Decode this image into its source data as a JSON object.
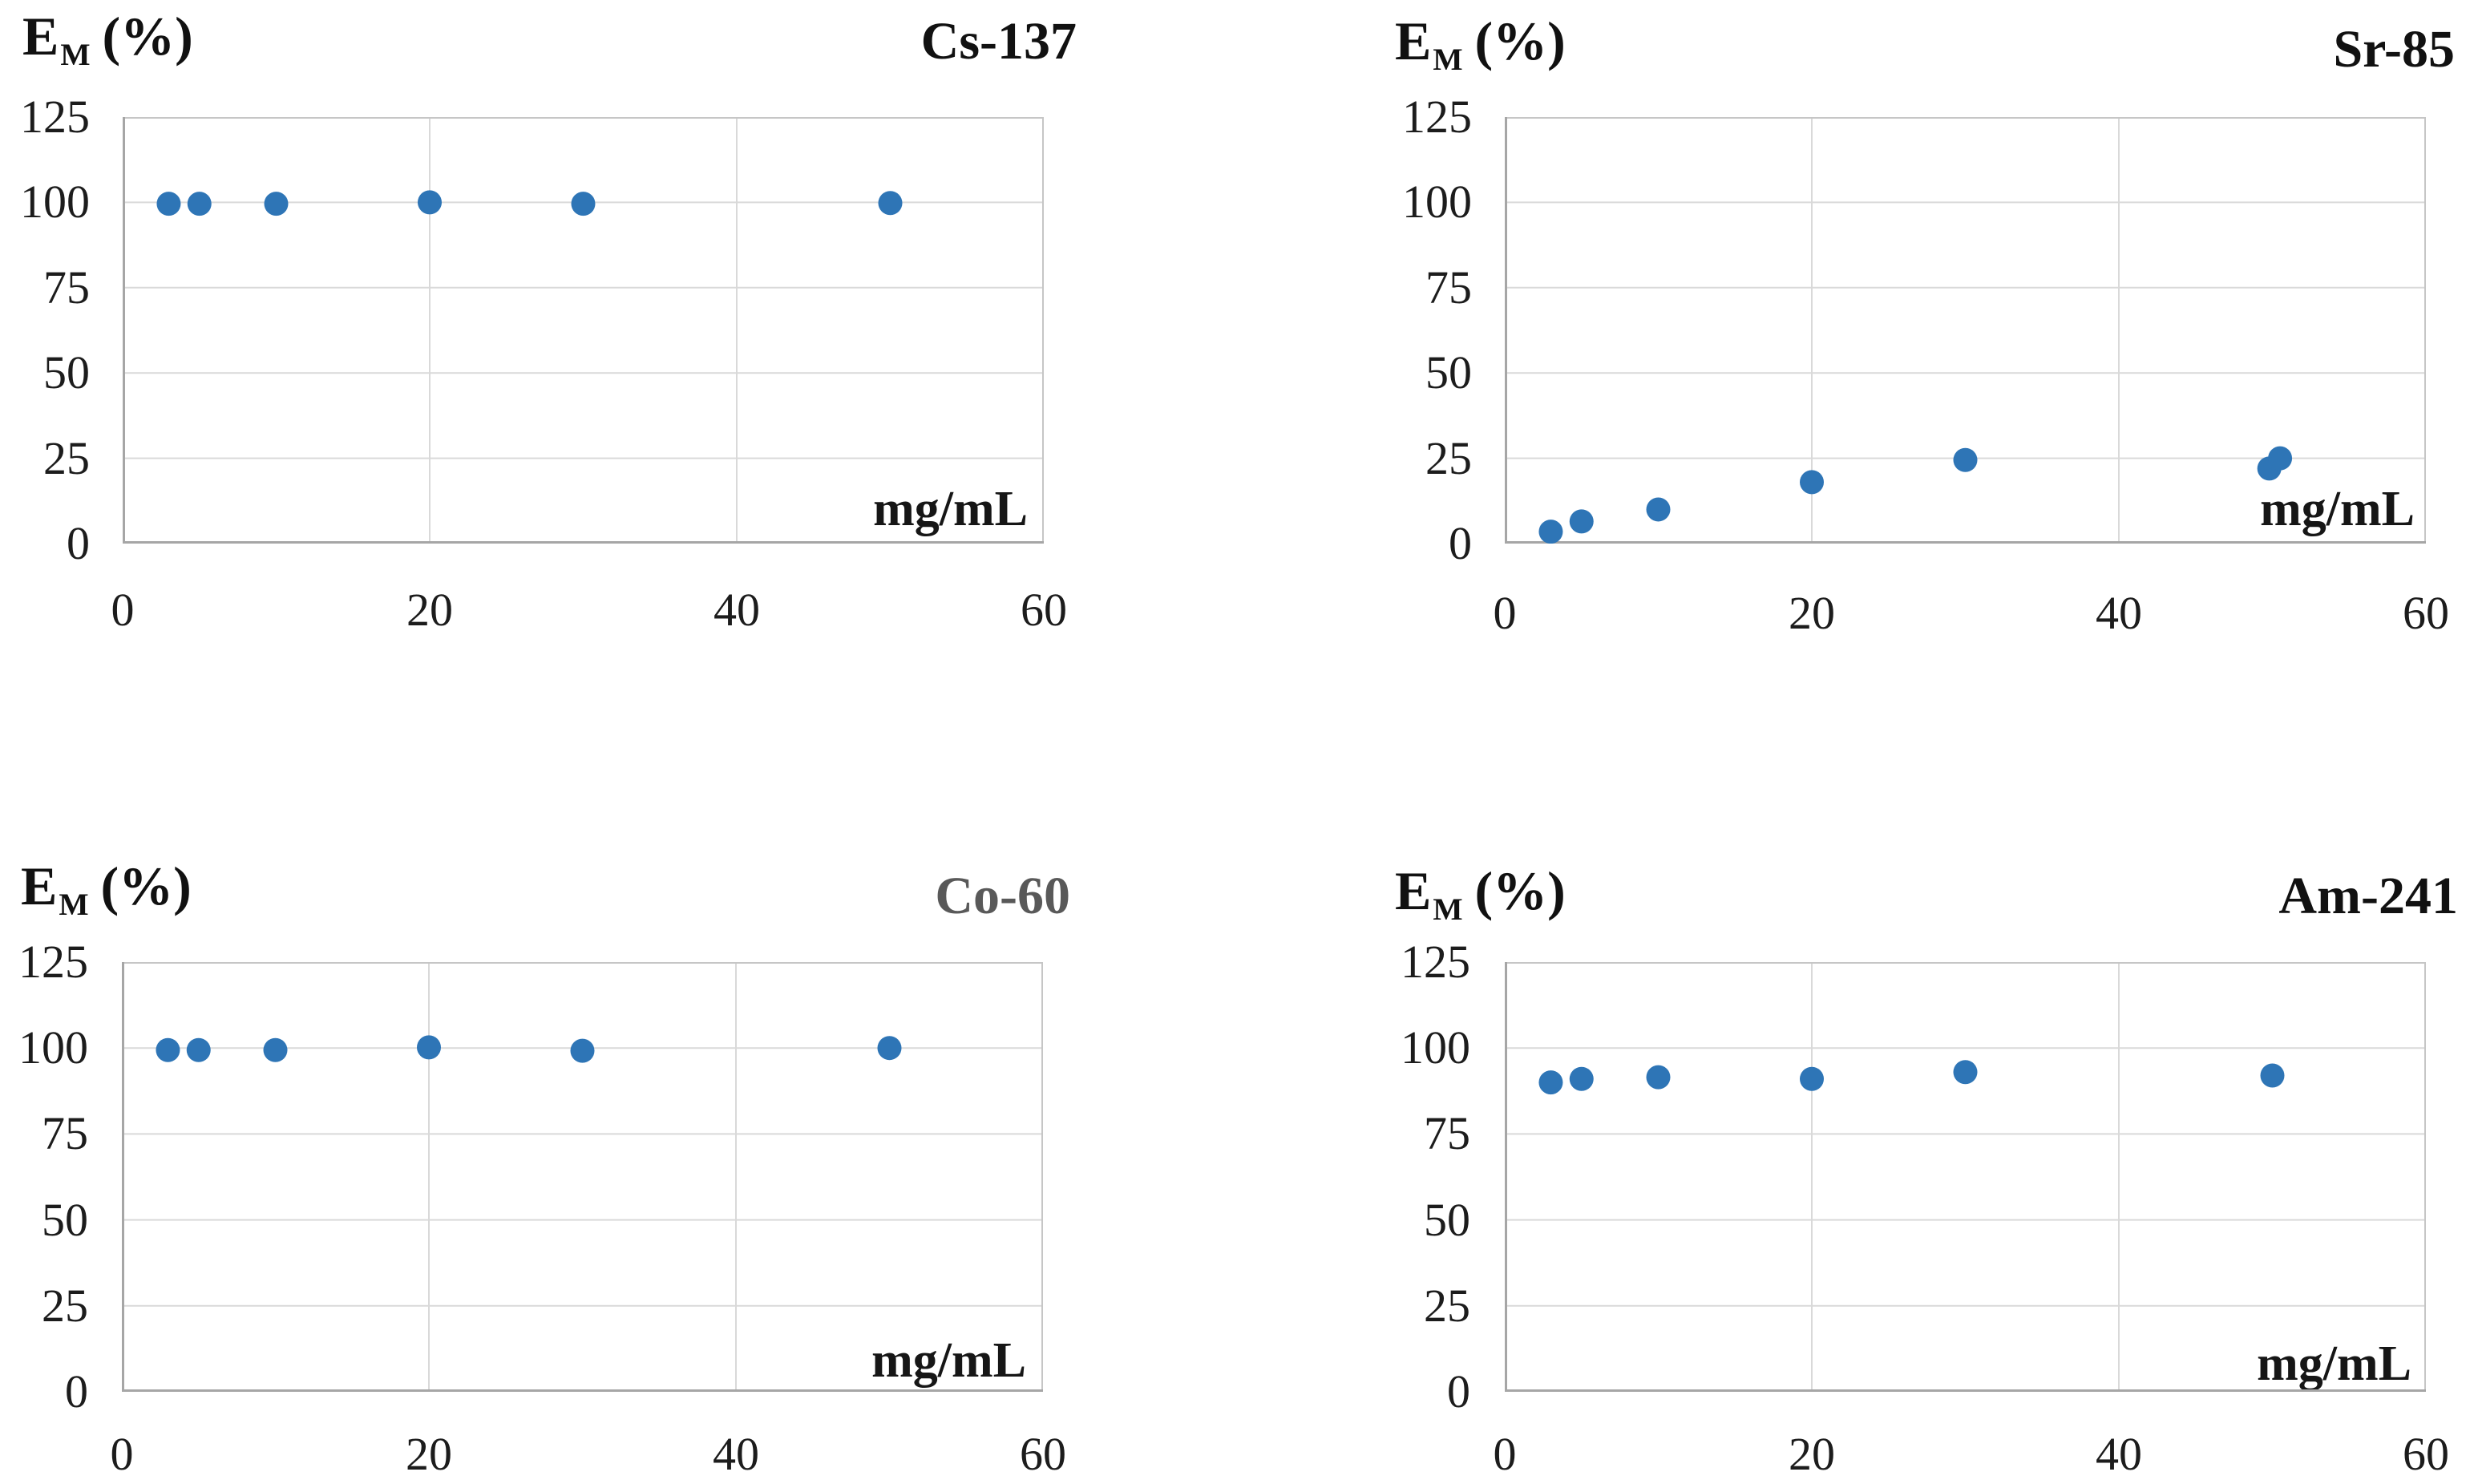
{
  "page": {
    "background_color": "#ffffff"
  },
  "chart_data": [
    {
      "id": "cs137",
      "type": "scatter",
      "title": "Cs-137",
      "title_color": "#111111",
      "y_axis_label": {
        "main": "E",
        "sub": "M",
        "rest": "(%)"
      },
      "x_unit_label": "mg/mL",
      "xlabel": "mg/mL",
      "ylabel": "EM (%)",
      "xlim": [
        0,
        60
      ],
      "ylim": [
        0,
        125
      ],
      "x_ticks": [
        0,
        20,
        40,
        60
      ],
      "y_ticks": [
        0,
        25,
        50,
        75,
        100,
        125
      ],
      "grid": true,
      "legend": "none",
      "marker_color": "#2E75B6",
      "points": [
        {
          "x": 3,
          "y": 99.6
        },
        {
          "x": 5,
          "y": 99.6
        },
        {
          "x": 10,
          "y": 99.6
        },
        {
          "x": 20,
          "y": 100
        },
        {
          "x": 30,
          "y": 99.6
        },
        {
          "x": 50,
          "y": 99.8
        }
      ]
    },
    {
      "id": "sr85",
      "type": "scatter",
      "title": "Sr-85",
      "title_color": "#111111",
      "y_axis_label": {
        "main": "E",
        "sub": "M",
        "rest": "(%)"
      },
      "x_unit_label": "mg/mL",
      "xlabel": "mg/mL",
      "ylabel": "EM (%)",
      "xlim": [
        0,
        60
      ],
      "ylim": [
        0,
        125
      ],
      "x_ticks": [
        0,
        20,
        40,
        60
      ],
      "y_ticks": [
        0,
        25,
        50,
        75,
        100,
        125
      ],
      "grid": true,
      "legend": "none",
      "marker_color": "#2E75B6",
      "points": [
        {
          "x": 3,
          "y": 3.5
        },
        {
          "x": 5,
          "y": 6.5
        },
        {
          "x": 10,
          "y": 10
        },
        {
          "x": 20,
          "y": 18
        },
        {
          "x": 30,
          "y": 24.5
        },
        {
          "x": 49.8,
          "y": 22
        },
        {
          "x": 50.5,
          "y": 25
        }
      ]
    },
    {
      "id": "co60",
      "type": "scatter",
      "title": "Co-60",
      "title_color": "#595959",
      "y_axis_label": {
        "main": "E",
        "sub": "M",
        "rest": "(%)"
      },
      "x_unit_label": "mg/mL",
      "xlabel": "mg/mL",
      "ylabel": "EM (%)",
      "xlim": [
        0,
        60
      ],
      "ylim": [
        0,
        125
      ],
      "x_ticks": [
        0,
        20,
        40,
        60
      ],
      "y_ticks": [
        0,
        25,
        50,
        75,
        100,
        125
      ],
      "grid": true,
      "legend": "none",
      "marker_color": "#2E75B6",
      "points": [
        {
          "x": 3,
          "y": 99.4
        },
        {
          "x": 5,
          "y": 99.4
        },
        {
          "x": 10,
          "y": 99.4
        },
        {
          "x": 20,
          "y": 100.2
        },
        {
          "x": 30,
          "y": 99.2
        },
        {
          "x": 50,
          "y": 100
        }
      ]
    },
    {
      "id": "am241",
      "type": "scatter",
      "title": "Am-241",
      "title_color": "#111111",
      "y_axis_label": {
        "main": "E",
        "sub": "M",
        "rest": "(%)"
      },
      "x_unit_label": "mg/mL",
      "xlabel": "mg/mL",
      "ylabel": "EM (%)",
      "xlim": [
        0,
        60
      ],
      "ylim": [
        0,
        125
      ],
      "x_ticks": [
        0,
        20,
        40,
        60
      ],
      "y_ticks": [
        0,
        25,
        50,
        75,
        100,
        125
      ],
      "grid": true,
      "legend": "none",
      "marker_color": "#2E75B6",
      "points": [
        {
          "x": 3,
          "y": 90
        },
        {
          "x": 5,
          "y": 91
        },
        {
          "x": 10,
          "y": 91.5
        },
        {
          "x": 20,
          "y": 91
        },
        {
          "x": 30,
          "y": 93
        },
        {
          "x": 50,
          "y": 92
        }
      ]
    }
  ]
}
